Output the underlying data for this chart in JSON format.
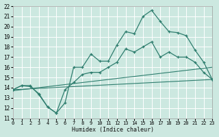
{
  "xlabel": "Humidex (Indice chaleur)",
  "bg_color": "#cce8e0",
  "grid_color": "#ffffff",
  "line_color": "#2e7d6e",
  "xmin": 0,
  "xmax": 23,
  "ymin": 11,
  "ymax": 22,
  "xticks": [
    0,
    1,
    2,
    3,
    4,
    5,
    6,
    7,
    8,
    9,
    10,
    11,
    12,
    13,
    14,
    15,
    16,
    17,
    18,
    19,
    20,
    21,
    22,
    23
  ],
  "yticks": [
    11,
    12,
    13,
    14,
    15,
    16,
    17,
    18,
    19,
    20,
    21,
    22
  ],
  "line1_x": [
    0,
    1,
    2,
    3,
    4,
    5,
    6,
    7,
    8,
    9,
    10,
    11,
    12,
    13,
    14,
    15,
    16,
    17,
    18,
    19,
    20,
    21,
    22,
    23
  ],
  "line1_y": [
    13.8,
    14.2,
    14.2,
    13.3,
    12.1,
    11.5,
    12.5,
    16.0,
    16.0,
    17.3,
    16.6,
    16.6,
    18.2,
    19.5,
    19.3,
    21.0,
    21.6,
    20.5,
    19.5,
    19.4,
    19.1,
    17.7,
    16.5,
    14.8
  ],
  "line2_x": [
    0,
    1,
    2,
    3,
    4,
    5,
    6,
    7,
    8,
    9,
    10,
    11,
    12,
    13,
    14,
    15,
    16,
    17,
    18,
    19,
    20,
    21,
    22,
    23
  ],
  "line2_y": [
    13.8,
    14.2,
    14.1,
    13.4,
    12.1,
    11.5,
    13.8,
    14.5,
    15.3,
    15.5,
    15.5,
    16.0,
    16.5,
    17.8,
    17.5,
    18.0,
    18.5,
    17.0,
    17.5,
    17.0,
    17.0,
    16.5,
    15.5,
    14.8
  ],
  "line3_x": [
    0,
    23
  ],
  "line3_y": [
    13.7,
    16.0
  ],
  "line4_x": [
    0,
    23
  ],
  "line4_y": [
    13.8,
    14.8
  ]
}
